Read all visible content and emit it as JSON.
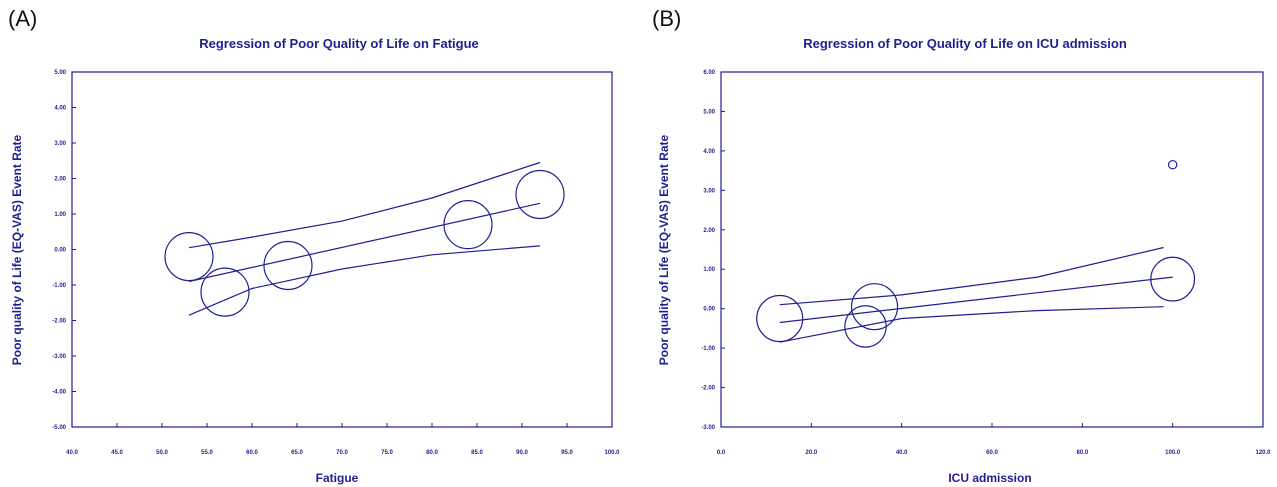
{
  "colors": {
    "ink": "#1f1f8f",
    "frame": "#1f1f8f"
  },
  "panels": [
    {
      "letter": "(A)"
    },
    {
      "letter": "(B)"
    }
  ],
  "chart_data": [
    {
      "type": "scatter",
      "title": "Regression of Poor Quality of Life on Fatigue",
      "xlabel": "Fatigue",
      "ylabel": "Poor quality of Life (EQ-VAS) Event Rate",
      "xlim": [
        40,
        100
      ],
      "ylim": [
        -5,
        5
      ],
      "xticks": [
        "40.0",
        "45.0",
        "50.0",
        "55.0",
        "60.0",
        "65.0",
        "70.0",
        "75.0",
        "80.0",
        "85.0",
        "90.0",
        "95.0",
        "100.0"
      ],
      "yticks": [
        "-5.00",
        "-4.00",
        "-3.00",
        "-2.00",
        "-1.00",
        "0.00",
        "1.00",
        "2.00",
        "3.00",
        "4.00",
        "5.00"
      ],
      "points": [
        {
          "x": 53,
          "y": -0.2,
          "weight": 1.0
        },
        {
          "x": 57,
          "y": -1.2,
          "weight": 1.0
        },
        {
          "x": 64,
          "y": -0.45,
          "weight": 1.0
        },
        {
          "x": 84,
          "y": 0.7,
          "weight": 1.0
        },
        {
          "x": 92,
          "y": 1.55,
          "weight": 1.0
        }
      ],
      "regression": {
        "x": [
          53,
          92
        ],
        "y": [
          -0.9,
          1.3
        ]
      },
      "ci_upper": {
        "x": [
          53,
          60,
          70,
          80,
          92
        ],
        "y": [
          0.05,
          0.35,
          0.8,
          1.45,
          2.45
        ]
      },
      "ci_lower": {
        "x": [
          53,
          60,
          70,
          80,
          92
        ],
        "y": [
          -1.85,
          -1.1,
          -0.55,
          -0.15,
          0.1
        ]
      }
    },
    {
      "type": "scatter",
      "title": "Regression of Poor Quality of Life on ICU admission",
      "xlabel": "ICU admission",
      "ylabel": "Poor quality of Life (EQ-VAS) Event Rate",
      "xlim": [
        0,
        120
      ],
      "ylim": [
        -3,
        6
      ],
      "xticks": [
        "0.0",
        "20.0",
        "40.0",
        "60.0",
        "80.0",
        "100.0",
        "120.0"
      ],
      "yticks": [
        "-3.00",
        "-2.00",
        "-1.00",
        "0.00",
        "1.00",
        "2.00",
        "3.00",
        "4.00",
        "5.00",
        "6.00"
      ],
      "points": [
        {
          "x": 13,
          "y": -0.25,
          "weight": 1.0
        },
        {
          "x": 32,
          "y": -0.45,
          "weight": 0.9
        },
        {
          "x": 34,
          "y": 0.05,
          "weight": 1.0
        },
        {
          "x": 100,
          "y": 0.75,
          "weight": 0.95
        },
        {
          "x": 100,
          "y": 3.65,
          "weight": 0.18
        }
      ],
      "regression": {
        "x": [
          13,
          100
        ],
        "y": [
          -0.35,
          0.8
        ]
      },
      "ci_upper": {
        "x": [
          13,
          40,
          70,
          98
        ],
        "y": [
          0.1,
          0.35,
          0.8,
          1.55
        ]
      },
      "ci_lower": {
        "x": [
          13,
          40,
          70,
          98
        ],
        "y": [
          -0.85,
          -0.25,
          -0.05,
          0.05
        ]
      }
    }
  ]
}
